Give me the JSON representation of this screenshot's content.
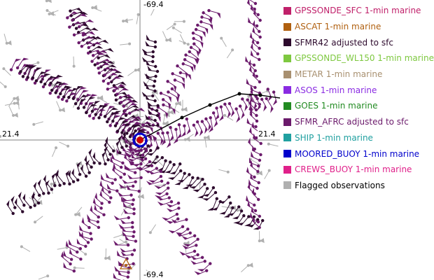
{
  "map": {
    "axis_labels": {
      "top": "-69.4",
      "bottom": "-69.4",
      "left": "21.4",
      "right": "21.4"
    },
    "colors": {
      "sfmr_afrc": "#6b1a6b",
      "sfmr42": "#2d0a2d",
      "flagged": "#b0b0b0",
      "track": "#000000",
      "center_ring": "#0000cc",
      "center_fill": "#cc0000",
      "gridline": "#808080"
    },
    "center_marker": "storm-center-icon"
  },
  "legend": {
    "items": [
      {
        "label": "GPSSONDE_SFC 1-min marine",
        "color": "#c0206a"
      },
      {
        "label": "ASCAT 1-min marine",
        "color": "#b06010"
      },
      {
        "label": "SFMR42 adjusted to sfc",
        "color": "#2d0a2d"
      },
      {
        "label": "GPSSONDE_WL150 1-min marine",
        "color": "#7ec840"
      },
      {
        "label": "METAR 1-min marine",
        "color": "#a89070"
      },
      {
        "label": "ASOS 1-min marine",
        "color": "#8a2be2"
      },
      {
        "label": "GOES 1-min marine",
        "color": "#228b22"
      },
      {
        "label": "SFMR_AFRC adjusted to sfc",
        "color": "#6b1a6b"
      },
      {
        "label": "SHIP 1-min marine",
        "color": "#20a0a0"
      },
      {
        "label": "MOORED_BUOY 1-min marine",
        "color": "#0000cc"
      },
      {
        "label": "CREWS_BUOY 1-min marine",
        "color": "#e0208a"
      },
      {
        "label": "Flagged observations",
        "color": "#b0b0b0"
      }
    ]
  }
}
